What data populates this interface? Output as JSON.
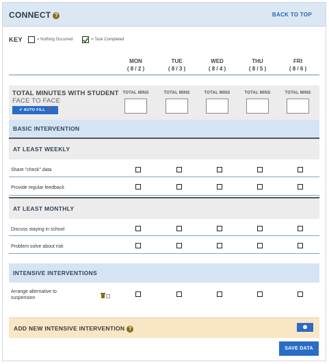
{
  "header": {
    "title": "CONNECT",
    "back_to_top": "BACK TO TOP"
  },
  "key": {
    "label": "KEY",
    "empty_text": "= Nothing Occurred",
    "checked_text": "= Task Completed"
  },
  "days": [
    {
      "name": "MON",
      "date": "( 8 / 2 )"
    },
    {
      "name": "TUE",
      "date": "( 8 / 3 )"
    },
    {
      "name": "WED",
      "date": "( 8 / 4 )"
    },
    {
      "name": "THU",
      "date": "( 8 / 5 )"
    },
    {
      "name": "FRI",
      "date": "( 8 / 6 )"
    }
  ],
  "minutes": {
    "title": "TOTAL MINUTES WITH STUDENT",
    "subtitle": "FACE TO FACE",
    "autofill_label": "✔ AUTO FILL",
    "col_label": "TOTAL MINS"
  },
  "sections": {
    "basic": "BASIC INTERVENTION",
    "weekly": "AT LEAST WEEKLY",
    "monthly": "AT LEAST MONTHLY",
    "intensive": "INTENSIVE INTERVENTIONS"
  },
  "tasks": {
    "weekly": [
      "Share \"check\" data",
      "Provide regular feedback"
    ],
    "monthly": [
      "Discuss staying in school",
      "Problem solve about risk"
    ],
    "intensive": [
      "Arrange alternative to suspension"
    ]
  },
  "add_intervention": {
    "label": "ADD NEW INTENSIVE INTERVENTION"
  },
  "save_label": "SAVE DATA",
  "colors": {
    "accent": "#2b6cc4",
    "header_bg": "#dbe7f2",
    "section_bg": "#d4e4f4",
    "add_bg": "#f9e6c4",
    "help_icon": "#8a6a1b"
  }
}
